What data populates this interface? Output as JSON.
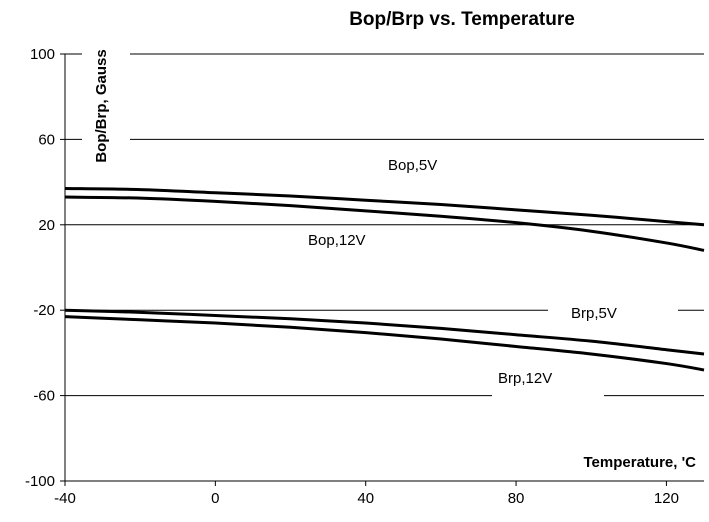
{
  "chart_data": {
    "type": "line",
    "title": "Bop/Brp vs. Temperature",
    "xlabel": "Temperature, 'C",
    "ylabel": "Bop/Brp, Gauss",
    "xlim": [
      -40,
      130
    ],
    "ylim": [
      -100,
      100
    ],
    "x_ticks": [
      -40,
      0,
      40,
      80,
      120
    ],
    "y_ticks": [
      -100,
      -60,
      -20,
      20,
      60,
      100
    ],
    "grid": "horizontal",
    "series": [
      {
        "name": "Bop,5V",
        "x": [
          -40,
          -20,
          0,
          20,
          40,
          60,
          80,
          100,
          120,
          130
        ],
        "y": [
          37,
          36.5,
          35,
          33.5,
          31.5,
          29.5,
          27,
          24.5,
          21.5,
          20
        ]
      },
      {
        "name": "Bop,12V",
        "x": [
          -40,
          -20,
          0,
          20,
          40,
          60,
          80,
          100,
          120,
          130
        ],
        "y": [
          33,
          32.5,
          31,
          29,
          26.5,
          24,
          21,
          17,
          11.5,
          8
        ]
      },
      {
        "name": "Brp,5V",
        "x": [
          -40,
          -20,
          0,
          20,
          40,
          60,
          80,
          100,
          120,
          130
        ],
        "y": [
          -20,
          -21,
          -22.5,
          -24,
          -26,
          -28.5,
          -31.5,
          -34.5,
          -38.5,
          -40.5
        ]
      },
      {
        "name": "Brp,12V",
        "x": [
          -40,
          -20,
          0,
          20,
          40,
          60,
          80,
          100,
          120,
          130
        ],
        "y": [
          -23,
          -24.5,
          -26,
          -28,
          -30.5,
          -33.5,
          -37,
          -40.5,
          -45,
          -48
        ]
      }
    ]
  }
}
